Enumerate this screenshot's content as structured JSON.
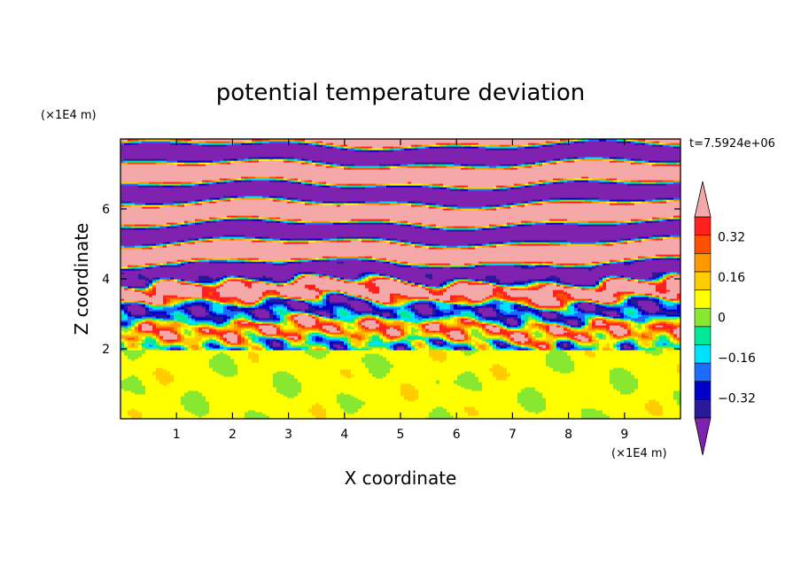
{
  "chart_data": {
    "type": "heatmap",
    "title": "potential temperature deviation",
    "xlabel": "X coordinate",
    "ylabel": "Z coordinate",
    "x_unit": "(×1E4 m)",
    "y_unit": "(×1E4 m)",
    "time_label": "t=7.5924e+06",
    "xlim": [
      0,
      10
    ],
    "ylim": [
      0,
      8
    ],
    "x_ticks": [
      "1",
      "2",
      "3",
      "4",
      "5",
      "6",
      "7",
      "8",
      "9"
    ],
    "x_tick_values": [
      1,
      2,
      3,
      4,
      5,
      6,
      7,
      8,
      9
    ],
    "y_ticks": [
      "2",
      "4",
      "6"
    ],
    "y_tick_values": [
      2,
      4,
      6
    ],
    "colorbar": {
      "levels": [
        -0.48,
        -0.4,
        -0.32,
        -0.24,
        -0.16,
        -0.08,
        0,
        0.08,
        0.16,
        0.24,
        0.32,
        0.4,
        0.48
      ],
      "colors": [
        "#7f22b0",
        "#2a1a9a",
        "#0000c8",
        "#1e6cff",
        "#00e0ff",
        "#00e898",
        "#88e830",
        "#ffff00",
        "#ffcc00",
        "#ff9900",
        "#ff5000",
        "#ff2020",
        "#f4a8a8"
      ],
      "tick_labels": [
        "0.32",
        "0.16",
        "0",
        "-0.16",
        "-0.32"
      ],
      "tick_values": [
        0.32,
        0.16,
        0,
        -0.16,
        -0.32
      ],
      "extend": "both"
    }
  }
}
